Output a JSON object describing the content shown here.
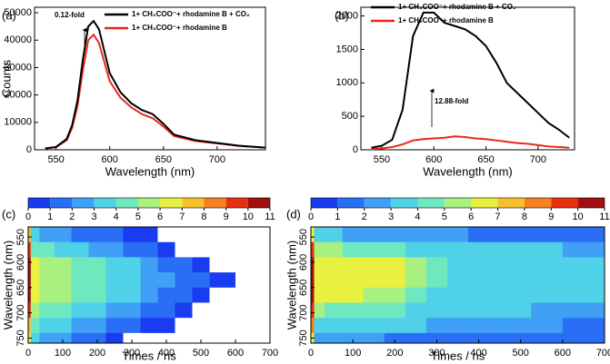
{
  "chart_data": [
    {
      "type": "line",
      "label": "(a)",
      "xlabel": "Wavelength (nm)",
      "ylabel": "Counts",
      "annotation": "0.12-fold",
      "xlim": [
        530,
        745
      ],
      "xticks": [
        550,
        600,
        650,
        700
      ],
      "ylim": [
        0,
        52000
      ],
      "yticks": [
        0,
        10000,
        20000,
        30000,
        40000,
        50000
      ],
      "x": [
        540,
        550,
        560,
        565,
        570,
        575,
        580,
        585,
        590,
        595,
        600,
        610,
        620,
        630,
        640,
        650,
        660,
        680,
        700,
        720,
        745
      ],
      "series": [
        {
          "name": "1+ CH₃COO⁻+ rhodamine B",
          "color": "#e8281e",
          "values": [
            500,
            1000,
            3500,
            8000,
            16000,
            29000,
            40000,
            42000,
            39000,
            32000,
            25000,
            19000,
            15500,
            13000,
            11500,
            8500,
            5000,
            3200,
            2300,
            1400,
            800
          ]
        },
        {
          "name": "1+ CH₃COO⁻+ rhodamine B + CO₂",
          "color": "#000000",
          "values": [
            500,
            1000,
            4000,
            9000,
            18000,
            33000,
            45000,
            47000,
            44000,
            36000,
            28000,
            21000,
            17000,
            14500,
            13000,
            9500,
            5500,
            3500,
            2500,
            1500,
            800
          ]
        }
      ]
    },
    {
      "type": "line",
      "label": "(b)",
      "xlabel": "Wavelength (nm)",
      "annotation": "12.88-fold",
      "xlim": [
        530,
        735
      ],
      "xticks": [
        550,
        600,
        650,
        700
      ],
      "ylim": [
        0,
        2130
      ],
      "yticks": [
        0,
        500,
        1000,
        1500,
        2000
      ],
      "x": [
        540,
        550,
        560,
        570,
        580,
        590,
        600,
        610,
        620,
        630,
        640,
        650,
        660,
        670,
        680,
        690,
        700,
        710,
        720,
        730
      ],
      "series": [
        {
          "name": "1+ CH₃COO⁻+ rhodamine B",
          "color": "#e8281e",
          "values": [
            10,
            20,
            40,
            80,
            140,
            160,
            170,
            180,
            200,
            190,
            170,
            160,
            140,
            120,
            100,
            90,
            70,
            50,
            40,
            30
          ]
        },
        {
          "name": "1+ CH₃COO⁻+ rhodamine B + CO₂",
          "color": "#000000",
          "values": [
            30,
            60,
            150,
            600,
            1700,
            2050,
            2050,
            1900,
            1850,
            1800,
            1700,
            1550,
            1300,
            1000,
            850,
            700,
            550,
            400,
            300,
            180
          ]
        }
      ]
    },
    {
      "type": "heatmap",
      "label": "(c)",
      "xlabel": "Times / ns",
      "ylabel": "Wavelength (nm)",
      "xlim": [
        0,
        700
      ],
      "xticks": [
        0,
        100,
        200,
        300,
        400,
        500,
        600,
        700
      ],
      "ylim": [
        530,
        760
      ],
      "yticks": [
        550,
        600,
        650,
        700,
        750
      ],
      "levels": [
        0,
        1,
        2,
        3,
        4,
        5,
        6,
        7,
        8,
        9,
        10,
        11
      ],
      "colors": [
        "#1a3cf0",
        "#2a6ef5",
        "#3fa0f5",
        "#4fd2e8",
        "#6fe8c0",
        "#a8f080",
        "#e8f040",
        "#f8c030",
        "#f88020",
        "#e83010",
        "#a01010"
      ],
      "x": [
        0,
        15,
        50,
        100,
        150,
        200,
        250,
        300,
        350,
        400,
        450,
        500,
        550,
        650
      ],
      "y": [
        545,
        575,
        605,
        635,
        665,
        695,
        725,
        755
      ],
      "z": [
        [
          7,
          3,
          2.5,
          2,
          1.5,
          1.2,
          1,
          0.8,
          0.5,
          0,
          0,
          0,
          0,
          0
        ],
        [
          9,
          4.5,
          4,
          3.5,
          3,
          2.5,
          2,
          1.5,
          1,
          0.6,
          0,
          0,
          0,
          0
        ],
        [
          10,
          6,
          5.5,
          5,
          4.5,
          4,
          3.5,
          3,
          2.2,
          1.5,
          1,
          0.5,
          0,
          0
        ],
        [
          10,
          6.5,
          5.5,
          5,
          4.6,
          4.2,
          3.8,
          3.2,
          2.5,
          2,
          1.5,
          1,
          0.5,
          0
        ],
        [
          10,
          6,
          5.5,
          5,
          4.5,
          4,
          3.5,
          3,
          2.2,
          1.5,
          1,
          0.6,
          0,
          0
        ],
        [
          9,
          5,
          4.5,
          4,
          3.5,
          3,
          2.5,
          2,
          1.5,
          1,
          0.5,
          0,
          0,
          0
        ],
        [
          7,
          4,
          3.5,
          3,
          2.5,
          2,
          1.6,
          1.2,
          0.8,
          0.4,
          0,
          0,
          0,
          0
        ],
        [
          6,
          3,
          2.5,
          2,
          1.5,
          1,
          0.6,
          0,
          0,
          0,
          0,
          0,
          0,
          0
        ]
      ]
    },
    {
      "type": "heatmap",
      "label": "(d)",
      "xlabel": "Times / ns",
      "ylabel": "Wavelength (nm)",
      "xlim": [
        0,
        700
      ],
      "xticks": [
        0,
        100,
        200,
        300,
        400,
        500,
        600,
        700
      ],
      "ylim": [
        530,
        760
      ],
      "yticks": [
        550,
        600,
        650,
        700,
        750
      ],
      "levels": [
        0,
        1,
        2,
        3,
        4,
        5,
        6,
        7,
        8,
        9,
        10,
        11
      ],
      "colors": [
        "#1a3cf0",
        "#2a6ef5",
        "#3fa0f5",
        "#4fd2e8",
        "#6fe8c0",
        "#a8f080",
        "#e8f040",
        "#f8c030",
        "#f88020",
        "#e83010",
        "#a01010"
      ],
      "x": [
        0,
        15,
        50,
        100,
        150,
        200,
        250,
        300,
        350,
        400,
        450,
        500,
        550,
        650
      ],
      "y": [
        545,
        575,
        605,
        635,
        665,
        695,
        725,
        755
      ],
      "z": [
        [
          6,
          3,
          3,
          2.8,
          2.5,
          2.3,
          2.2,
          2,
          2,
          1.8,
          1.8,
          1.6,
          1.5,
          1.4
        ],
        [
          9,
          5,
          5,
          4.5,
          4.2,
          4,
          3.8,
          3.6,
          3.5,
          3.4,
          3.3,
          3.2,
          3,
          2.8
        ],
        [
          10,
          6.5,
          6.5,
          6.3,
          6.2,
          6,
          5,
          4,
          3.8,
          3.6,
          3.5,
          3.4,
          3.3,
          3.1
        ],
        [
          10,
          6.5,
          6.5,
          6.3,
          6.2,
          6,
          5,
          4,
          3.8,
          3.6,
          3.5,
          3.4,
          3.3,
          3.1
        ],
        [
          10,
          6.3,
          6.2,
          6,
          5.8,
          5.5,
          4.5,
          3.9,
          3.7,
          3.5,
          3.4,
          3.3,
          3.2,
          3
        ],
        [
          9,
          5,
          4.8,
          4.5,
          4.2,
          4,
          3.8,
          3.6,
          3.5,
          3.4,
          3.2,
          3,
          2.8,
          2.6
        ],
        [
          8,
          3.8,
          3.6,
          3.5,
          3.3,
          3.2,
          3,
          2.8,
          2.6,
          2.5,
          2.3,
          2.2,
          2,
          1.8
        ],
        [
          6,
          2.5,
          2.3,
          2.2,
          2,
          1.8,
          1.6,
          1.5,
          1.4,
          1.3,
          1.2,
          1.1,
          1,
          1
        ]
      ]
    }
  ]
}
